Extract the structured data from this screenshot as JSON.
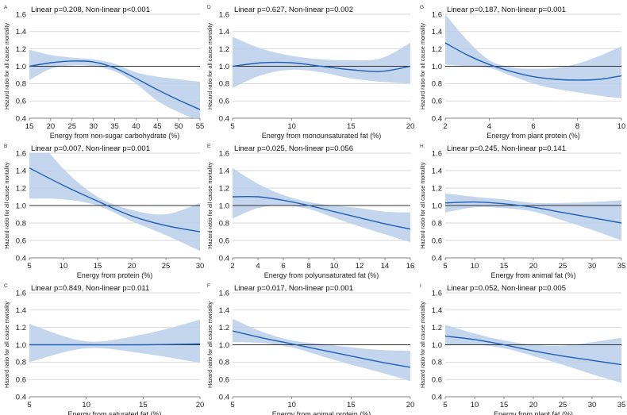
{
  "figure": {
    "colors": {
      "band": "#b8cfea",
      "curve": "#1f5fb5",
      "grid": "#c8c8c8",
      "ref": "#333333"
    }
  },
  "chart_data": [
    {
      "panel": "A",
      "type": "line",
      "title": "Linear p=0.208, Non-linear p<0.001",
      "xlabel": "Energy from non-sugar carbohydrate (%)",
      "ylabel": "Hazard ratio for all cause mortality",
      "xlim": [
        15,
        55
      ],
      "xticks": [
        15,
        20,
        25,
        30,
        35,
        40,
        45,
        50,
        55
      ],
      "ylim": [
        0.4,
        1.6
      ],
      "yticks": [
        "0.4",
        "0.6",
        "0.8",
        "1.0",
        "1.2",
        "1.4",
        "1.6"
      ],
      "reference": 1.0,
      "x": [
        15,
        20,
        25,
        30,
        35,
        40,
        45,
        50,
        55
      ],
      "hr": [
        1.0,
        1.04,
        1.06,
        1.05,
        0.98,
        0.86,
        0.73,
        0.61,
        0.5
      ],
      "lower": [
        0.84,
        0.97,
        1.01,
        1.0,
        0.94,
        0.8,
        0.6,
        0.47,
        0.37
      ],
      "upper": [
        1.19,
        1.13,
        1.1,
        1.08,
        1.03,
        0.93,
        0.88,
        0.85,
        0.82
      ]
    },
    {
      "panel": "D",
      "type": "line",
      "title": "Linear p=0.627, Non-linear p=0.002",
      "xlabel": "Energy from monounsaturated fat (%)",
      "ylabel": "Hazard ratio for all cause mortality",
      "xlim": [
        5,
        20
      ],
      "xticks": [
        5,
        10,
        15,
        20
      ],
      "ylim": [
        0.4,
        1.6
      ],
      "yticks": [
        "0.4",
        "0.6",
        "0.8",
        "1.0",
        "1.2",
        "1.4",
        "1.6"
      ],
      "reference": 1.0,
      "x": [
        5,
        7.5,
        10,
        12.5,
        15,
        17.5,
        20
      ],
      "hr": [
        1.0,
        1.04,
        1.04,
        1.0,
        0.96,
        0.94,
        1.0
      ],
      "lower": [
        0.75,
        0.9,
        0.96,
        0.93,
        0.86,
        0.82,
        0.8
      ],
      "upper": [
        1.34,
        1.2,
        1.12,
        1.08,
        1.07,
        1.09,
        1.27
      ]
    },
    {
      "panel": "G",
      "type": "line",
      "title": "Linear p=0.187, Non-linear p=0.001",
      "xlabel": "Energy from plant protein (%)",
      "ylabel": "Hazard ratio for all cause mortality",
      "xlim": [
        2,
        10
      ],
      "xticks": [
        2,
        4,
        6,
        8,
        10
      ],
      "ylim": [
        0.4,
        1.6
      ],
      "yticks": [
        "0.4",
        "0.6",
        "0.8",
        "1.0",
        "1.2",
        "1.4",
        "1.6"
      ],
      "reference": 1.0,
      "x": [
        2,
        3,
        4,
        5,
        6,
        7,
        8,
        9,
        10
      ],
      "hr": [
        1.27,
        1.13,
        1.02,
        0.94,
        0.88,
        0.85,
        0.84,
        0.85,
        0.89
      ],
      "lower": [
        1.02,
        1.0,
        0.98,
        0.89,
        0.8,
        0.74,
        0.7,
        0.66,
        0.63
      ],
      "upper": [
        1.6,
        1.3,
        1.07,
        0.99,
        0.97,
        0.98,
        1.03,
        1.12,
        1.23
      ]
    },
    {
      "panel": "B",
      "type": "line",
      "title": "Linear p=0.007, Non-linear p=0.001",
      "xlabel": "Energy from protein (%)",
      "ylabel": "Hazard ratio for all cause mortality",
      "xlim": [
        5,
        30
      ],
      "xticks": [
        5,
        10,
        15,
        20,
        25,
        30
      ],
      "ylim": [
        0.4,
        1.6
      ],
      "yticks": [
        "0.4",
        "0.6",
        "0.8",
        "1.0",
        "1.2",
        "1.4",
        "1.6"
      ],
      "reference": 1.0,
      "x": [
        5,
        10,
        15,
        20,
        25,
        30
      ],
      "hr": [
        1.43,
        1.23,
        1.05,
        0.88,
        0.77,
        0.7
      ],
      "lower": [
        1.08,
        1.07,
        1.0,
        0.82,
        0.66,
        0.48
      ],
      "upper": [
        1.9,
        1.42,
        1.1,
        0.95,
        0.9,
        1.03
      ]
    },
    {
      "panel": "E",
      "type": "line",
      "title": "Linear p=0.025, Non-linear p=0.056",
      "xlabel": "Energy from polyunsaturated fat (%)",
      "ylabel": "Hazard ratio for all cause mortality",
      "xlim": [
        2,
        16
      ],
      "xticks": [
        2,
        4,
        6,
        8,
        10,
        12,
        14,
        16
      ],
      "ylim": [
        0.4,
        1.6
      ],
      "yticks": [
        "0.4",
        "0.6",
        "0.8",
        "1.0",
        "1.2",
        "1.4",
        "1.6"
      ],
      "reference": 1.0,
      "x": [
        2,
        4,
        6,
        8,
        10,
        12,
        14,
        16
      ],
      "hr": [
        1.1,
        1.1,
        1.06,
        1.0,
        0.93,
        0.86,
        0.79,
        0.73
      ],
      "lower": [
        0.85,
        0.97,
        1.0,
        0.96,
        0.86,
        0.76,
        0.67,
        0.58
      ],
      "upper": [
        1.43,
        1.25,
        1.12,
        1.04,
        1.0,
        0.97,
        0.93,
        0.92
      ]
    },
    {
      "panel": "H",
      "type": "line",
      "title": "Linear p=0.245, Non-linear p=0.141",
      "xlabel": "Energy from animal fat (%)",
      "ylabel": "Hazard ratio for all cause mortality",
      "xlim": [
        5,
        35
      ],
      "xticks": [
        5,
        10,
        15,
        20,
        25,
        30,
        35
      ],
      "ylim": [
        0.4,
        1.6
      ],
      "yticks": [
        "0.4",
        "0.6",
        "0.8",
        "1.0",
        "1.2",
        "1.4",
        "1.6"
      ],
      "reference": 1.0,
      "x": [
        5,
        10,
        15,
        20,
        25,
        30,
        35
      ],
      "hr": [
        1.03,
        1.04,
        1.02,
        0.98,
        0.92,
        0.86,
        0.8
      ],
      "lower": [
        0.92,
        0.98,
        0.97,
        0.93,
        0.83,
        0.72,
        0.6
      ],
      "upper": [
        1.14,
        1.1,
        1.07,
        1.03,
        1.03,
        1.04,
        1.06
      ]
    },
    {
      "panel": "C",
      "type": "line",
      "title": "Linear p=0.849, Non-linear p=0.011",
      "xlabel": "Energy from saturated fat (%)",
      "ylabel": "Hazard ratio for all cause mortality",
      "xlim": [
        5,
        20
      ],
      "xticks": [
        5,
        10,
        15,
        20
      ],
      "ylim": [
        0.4,
        1.6
      ],
      "yticks": [
        "0.4",
        "0.6",
        "0.8",
        "1.0",
        "1.2",
        "1.4",
        "1.6"
      ],
      "reference": 1.0,
      "x": [
        5,
        10,
        15,
        20
      ],
      "hr": [
        1.0,
        1.0,
        1.0,
        1.01
      ],
      "lower": [
        0.8,
        0.96,
        0.9,
        0.79
      ],
      "upper": [
        1.24,
        1.04,
        1.12,
        1.29
      ]
    },
    {
      "panel": "F",
      "type": "line",
      "title": "Linear p=0.017, Non-linear p=0.001",
      "xlabel": "Energy from animal protein (%)",
      "ylabel": "Hazard ratio for all cause mortality",
      "xlim": [
        5,
        20
      ],
      "xticks": [
        5,
        10,
        15,
        20
      ],
      "ylim": [
        0.4,
        1.6
      ],
      "yticks": [
        "0.4",
        "0.6",
        "0.8",
        "1.0",
        "1.2",
        "1.4",
        "1.6"
      ],
      "reference": 1.0,
      "x": [
        5,
        7.5,
        10,
        12.5,
        15,
        17.5,
        20
      ],
      "hr": [
        1.16,
        1.08,
        1.01,
        0.94,
        0.87,
        0.8,
        0.74
      ],
      "lower": [
        1.03,
        1.02,
        0.97,
        0.87,
        0.77,
        0.68,
        0.58
      ],
      "upper": [
        1.3,
        1.15,
        1.05,
        1.01,
        0.97,
        0.94,
        0.93
      ]
    },
    {
      "panel": "I",
      "type": "line",
      "title": "Linear p=0.052, Non-linear p=0.005",
      "xlabel": "Energy from plant fat (%)",
      "ylabel": "Hazard ratio for all cause mortality",
      "xlim": [
        5,
        35
      ],
      "xticks": [
        5,
        10,
        15,
        20,
        25,
        30,
        35
      ],
      "ylim": [
        0.4,
        1.6
      ],
      "yticks": [
        "0.4",
        "0.6",
        "0.8",
        "1.0",
        "1.2",
        "1.4",
        "1.6"
      ],
      "reference": 1.0,
      "x": [
        5,
        10,
        15,
        20,
        25,
        30,
        35
      ],
      "hr": [
        1.1,
        1.06,
        1.0,
        0.93,
        0.87,
        0.82,
        0.77
      ],
      "lower": [
        0.99,
        1.0,
        0.96,
        0.87,
        0.77,
        0.66,
        0.56
      ],
      "upper": [
        1.23,
        1.13,
        1.05,
        1.0,
        0.99,
        1.03,
        1.08
      ]
    }
  ]
}
